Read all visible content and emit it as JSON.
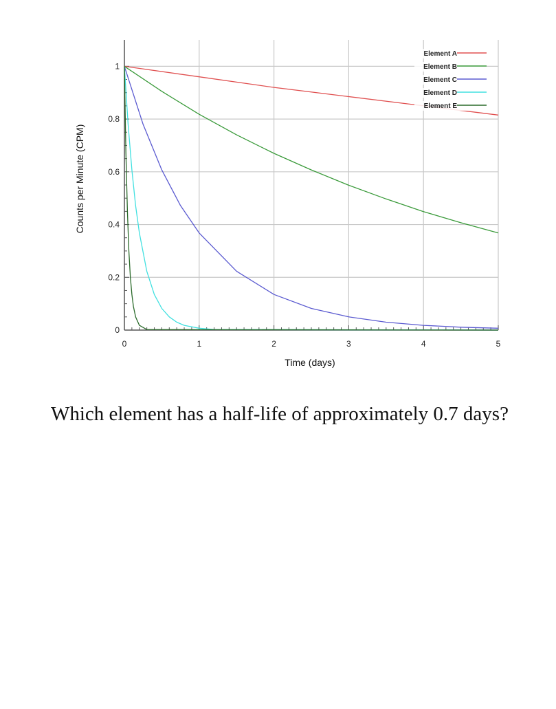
{
  "chart_data": {
    "type": "line",
    "title": "",
    "xlabel": "Time (days)",
    "ylabel": "Counts per Minute (CPM)",
    "xlim": [
      0,
      5
    ],
    "ylim": [
      0,
      1.1
    ],
    "x_ticks": [
      "0",
      "1",
      "2",
      "3",
      "4",
      "5"
    ],
    "y_ticks": [
      "0",
      "0.2",
      "0.4",
      "0.6",
      "0.8",
      "1"
    ],
    "grid": true,
    "legend_position": "top-right",
    "series": [
      {
        "name": "Element A",
        "color": "#e05050",
        "x": [
          0,
          1,
          2,
          3,
          4,
          5
        ],
        "y": [
          1.0,
          0.96,
          0.92,
          0.885,
          0.85,
          0.815
        ]
      },
      {
        "name": "Element B",
        "color": "#3a9a3a",
        "x": [
          0,
          0.5,
          1,
          1.5,
          2,
          2.5,
          3,
          3.5,
          4,
          4.5,
          5
        ],
        "y": [
          1.0,
          0.905,
          0.818,
          0.74,
          0.67,
          0.607,
          0.549,
          0.497,
          0.449,
          0.407,
          0.368
        ]
      },
      {
        "name": "Element C",
        "color": "#5a5ad0",
        "x": [
          0,
          0.25,
          0.5,
          0.75,
          1,
          1.5,
          2,
          2.5,
          3,
          3.5,
          4,
          4.5,
          5
        ],
        "y": [
          1.0,
          0.78,
          0.607,
          0.472,
          0.368,
          0.223,
          0.135,
          0.082,
          0.05,
          0.03,
          0.018,
          0.011,
          0.007
        ]
      },
      {
        "name": "Element D",
        "color": "#40e0e0",
        "x": [
          0,
          0.05,
          0.1,
          0.15,
          0.2,
          0.3,
          0.4,
          0.5,
          0.6,
          0.7,
          0.8,
          1,
          1.2,
          5
        ],
        "y": [
          1.0,
          0.78,
          0.607,
          0.472,
          0.368,
          0.223,
          0.135,
          0.082,
          0.05,
          0.03,
          0.018,
          0.007,
          0.002,
          0.0
        ]
      },
      {
        "name": "Element E",
        "color": "#2a6a2a",
        "x": [
          0,
          0.02,
          0.04,
          0.06,
          0.08,
          0.1,
          0.12,
          0.15,
          0.2,
          0.3,
          5
        ],
        "y": [
          1.0,
          0.67,
          0.45,
          0.3,
          0.2,
          0.135,
          0.09,
          0.05,
          0.018,
          0.002,
          0.0
        ]
      }
    ]
  },
  "question": {
    "text": "Which element has a half-life of approximately 0.7 days?"
  }
}
